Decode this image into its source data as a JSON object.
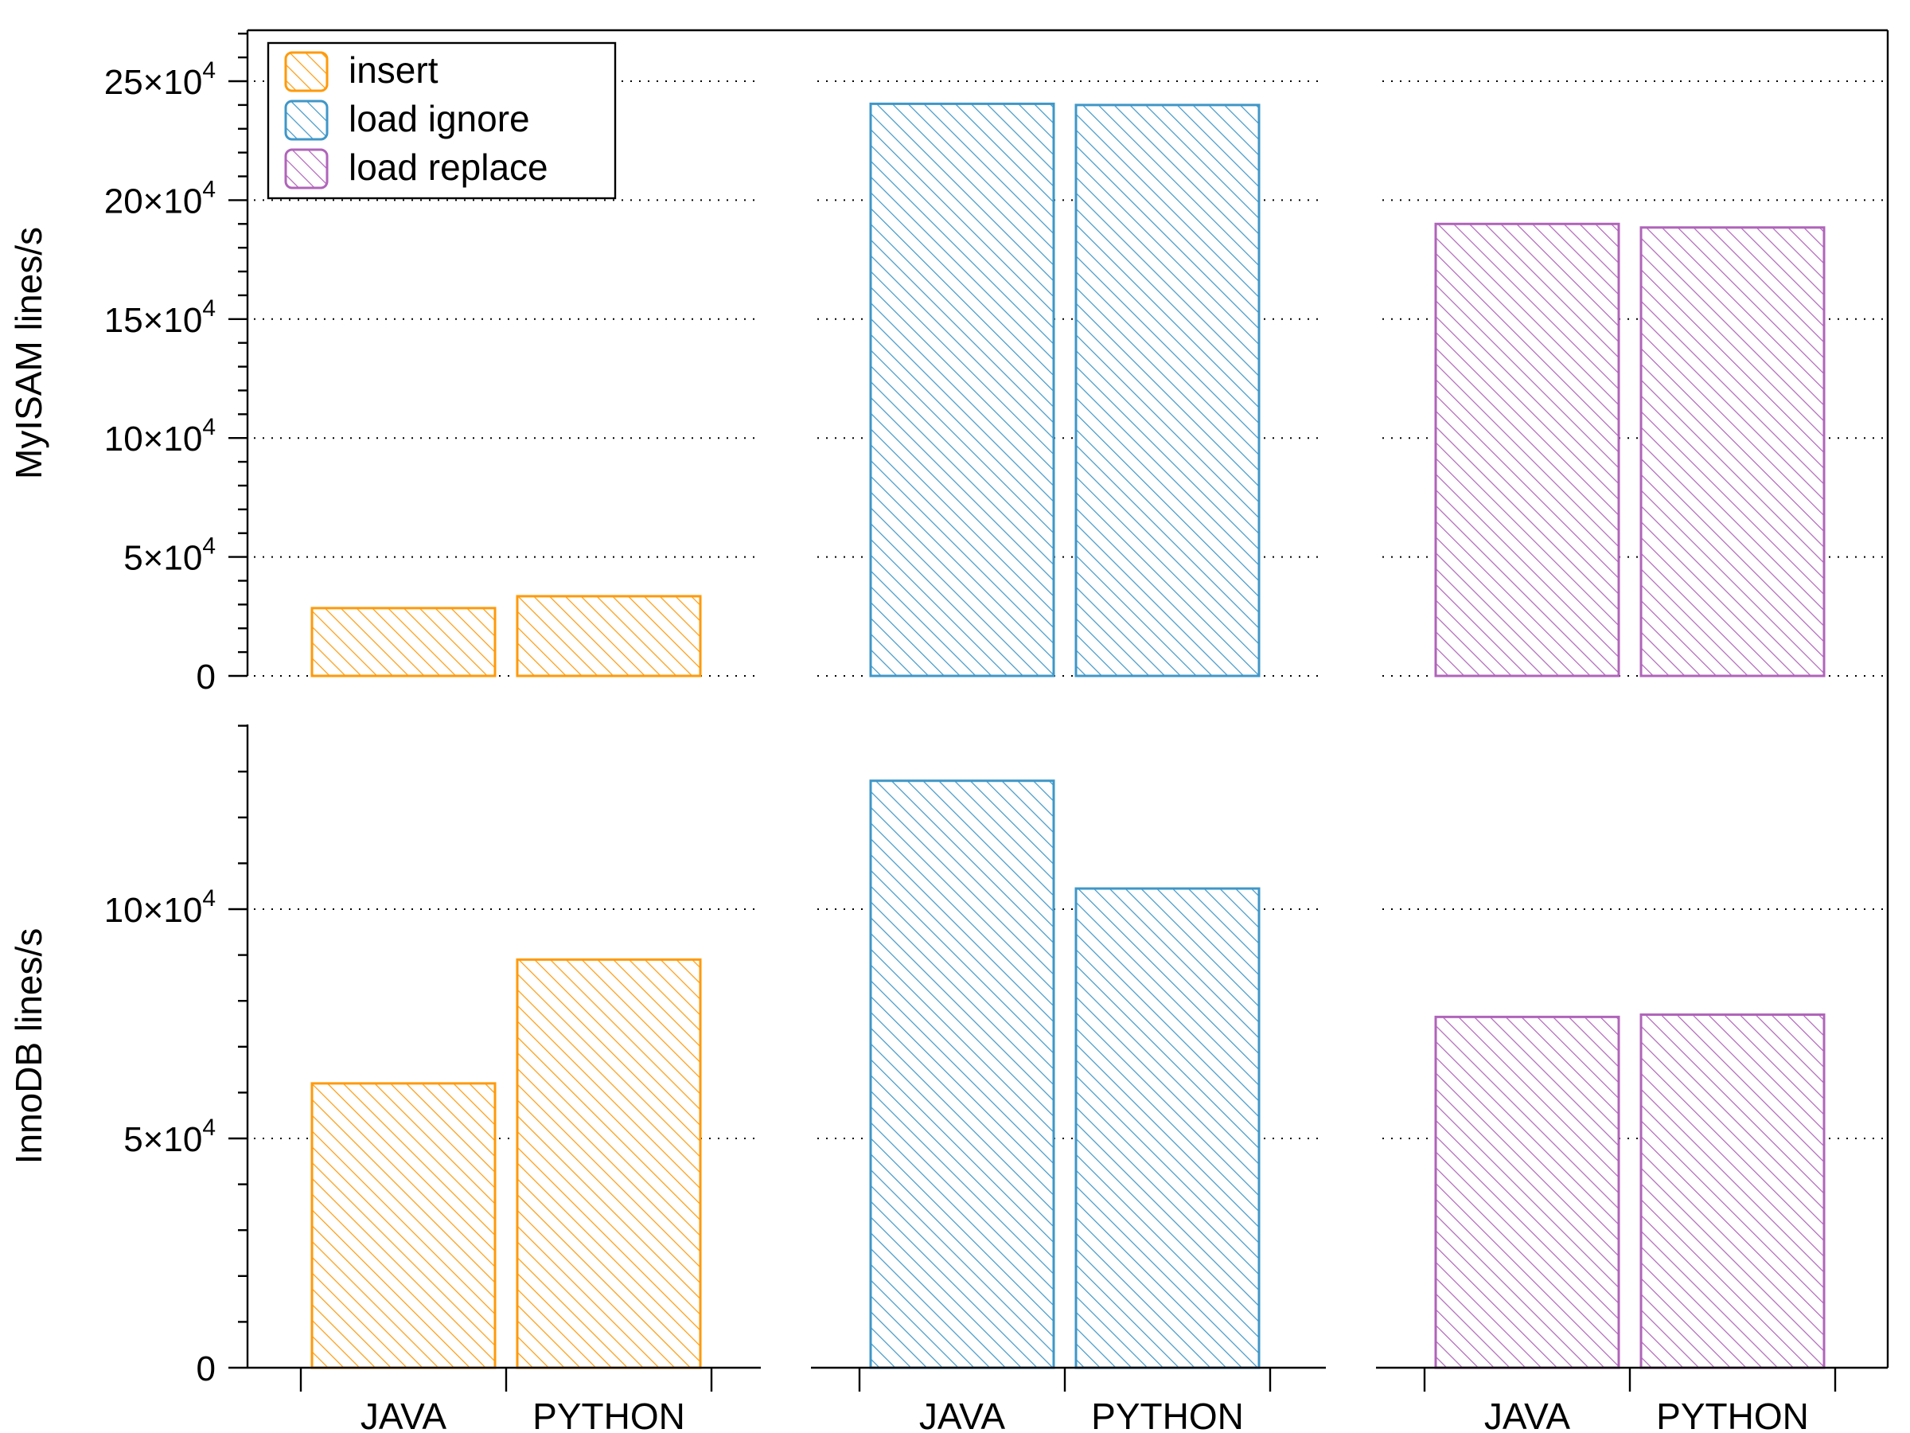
{
  "chart_data": {
    "type": "bar",
    "categories": [
      "JAVA",
      "PYTHON"
    ],
    "groups": [
      "insert",
      "load ignore",
      "load replace"
    ],
    "legend": {
      "position": "top-left",
      "entries": [
        "insert",
        "load ignore",
        "load replace"
      ]
    },
    "colors": {
      "insert": "#ff9a0a",
      "load ignore": "#3f97c8",
      "load replace": "#b064ba"
    },
    "panels": [
      {
        "ylabel": "MyISAM lines/s",
        "ylim": [
          0,
          240000
        ],
        "yticks": [
          0,
          50000,
          100000,
          150000,
          200000,
          250000
        ],
        "ytick_mantissas": [
          "0",
          "5",
          "10",
          "15",
          "20",
          "25"
        ],
        "grid_values": [
          0,
          50000,
          100000,
          150000,
          200000,
          250000
        ],
        "series": [
          {
            "name": "insert",
            "values": [
              28500,
              33500
            ]
          },
          {
            "name": "load ignore",
            "values": [
              240500,
              240000
            ]
          },
          {
            "name": "load replace",
            "values": [
              190000,
              188500
            ]
          }
        ]
      },
      {
        "ylabel": "InnoDB lines/s",
        "ylim": [
          0,
          140000
        ],
        "yticks": [
          0,
          50000,
          100000
        ],
        "ytick_mantissas": [
          "0",
          "5",
          "10"
        ],
        "grid_values": [
          50000,
          100000
        ],
        "series": [
          {
            "name": "insert",
            "values": [
              62000,
              89000
            ]
          },
          {
            "name": "load ignore",
            "values": [
              128000,
              104500
            ]
          },
          {
            "name": "load replace",
            "values": [
              76500,
              77000
            ]
          }
        ]
      }
    ],
    "tick_exponent_prefix": "×10",
    "tick_exponent": "4",
    "grid": "dotted horizontal"
  }
}
